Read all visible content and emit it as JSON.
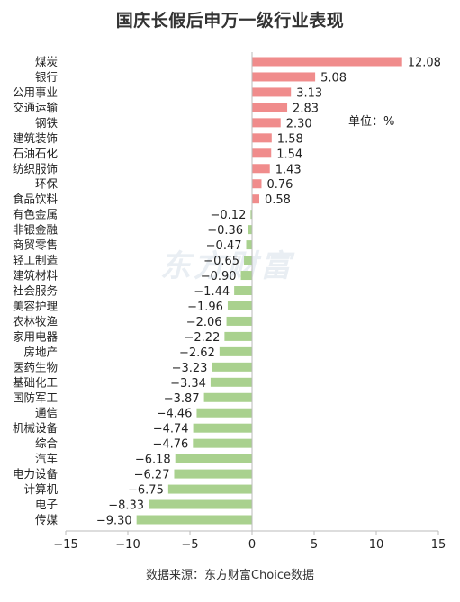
{
  "title": "国庆长假后申万一级行业表现",
  "unit_label": "单位：%",
  "source": "数据来源：东方财富Choice数据",
  "watermark": "东方财富",
  "colors": {
    "positive": "#f08c8c",
    "negative": "#a9d18e",
    "axis": "#bbbbbb",
    "text": "#222222"
  },
  "chart_data": {
    "type": "bar",
    "orientation": "horizontal",
    "title": "国庆长假后申万一级行业表现",
    "xlim": [
      -15,
      15
    ],
    "xticks": [
      -15,
      -10,
      -5,
      0,
      5,
      10,
      15
    ],
    "xtick_labels": [
      "−15",
      "−10",
      "−5",
      "0",
      "5",
      "10",
      "15"
    ],
    "categories": [
      "煤炭",
      "银行",
      "公用事业",
      "交通运输",
      "钢铁",
      "建筑装饰",
      "石油石化",
      "纺织服饰",
      "环保",
      "食品饮料",
      "有色金属",
      "非银金融",
      "商贸零售",
      "轻工制造",
      "建筑材料",
      "社会服务",
      "美容护理",
      "农林牧渔",
      "家用电器",
      "房地产",
      "医药生物",
      "基础化工",
      "国防军工",
      "通信",
      "机械设备",
      "综合",
      "汽车",
      "电力设备",
      "计算机",
      "电子",
      "传媒"
    ],
    "values": [
      12.08,
      5.08,
      3.13,
      2.83,
      2.3,
      1.58,
      1.54,
      1.43,
      0.76,
      0.58,
      -0.12,
      -0.36,
      -0.47,
      -0.65,
      -0.9,
      -1.44,
      -1.96,
      -2.06,
      -2.22,
      -2.62,
      -3.23,
      -3.34,
      -3.87,
      -4.46,
      -4.74,
      -4.76,
      -6.18,
      -6.27,
      -6.75,
      -8.33,
      -9.3
    ],
    "value_labels": [
      "12.08",
      "5.08",
      "3.13",
      "2.83",
      "2.30",
      "1.58",
      "1.54",
      "1.43",
      "0.76",
      "0.58",
      "−0.12",
      "−0.36",
      "−0.47",
      "−0.65",
      "−0.90",
      "−1.44",
      "−1.96",
      "−2.06",
      "−2.22",
      "−2.62",
      "−3.23",
      "−3.34",
      "−3.87",
      "−4.46",
      "−4.74",
      "−4.76",
      "−6.18",
      "−6.27",
      "−6.75",
      "−8.33",
      "−9.30"
    ],
    "grid": false,
    "legend": "none"
  }
}
